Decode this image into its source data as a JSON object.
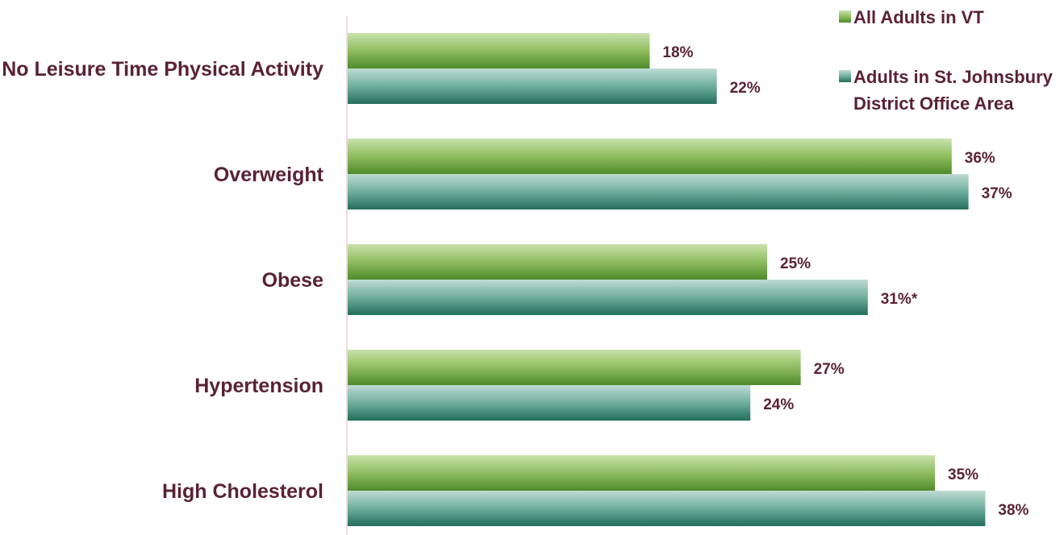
{
  "chart_data": {
    "type": "bar",
    "orientation": "horizontal",
    "categories": [
      "No Leisure Time Physical Activity",
      "Overweight",
      "Obese",
      "Hypertension",
      "High Cholesterol"
    ],
    "series": [
      {
        "name": "All Adults in VT",
        "values": [
          18,
          36,
          25,
          27,
          35
        ],
        "labels": [
          "18%",
          "36%",
          "25%",
          "27%",
          "35%"
        ],
        "color": "#7aa84c",
        "highlight": [
          false,
          false,
          false,
          false,
          false
        ]
      },
      {
        "name": "Adults in St. Johnsbury District Office Area",
        "legend_lines": [
          "Adults in St. Johnsbury",
          "District Office Area"
        ],
        "values": [
          22,
          37,
          31,
          24,
          38
        ],
        "labels": [
          "22%",
          "37%",
          "31%*",
          "24%",
          "38%"
        ],
        "color": "#4a9a8a",
        "highlight": [
          false,
          false,
          true,
          false,
          false
        ]
      }
    ],
    "title": "",
    "xlabel": "",
    "ylabel": "",
    "xlim": [
      0,
      40
    ],
    "grid": false,
    "legend_position": "top-right",
    "colors": {
      "label_text": "#5a2233",
      "highlight_text": "#b0103a",
      "axis": "#e8cfd6"
    }
  }
}
